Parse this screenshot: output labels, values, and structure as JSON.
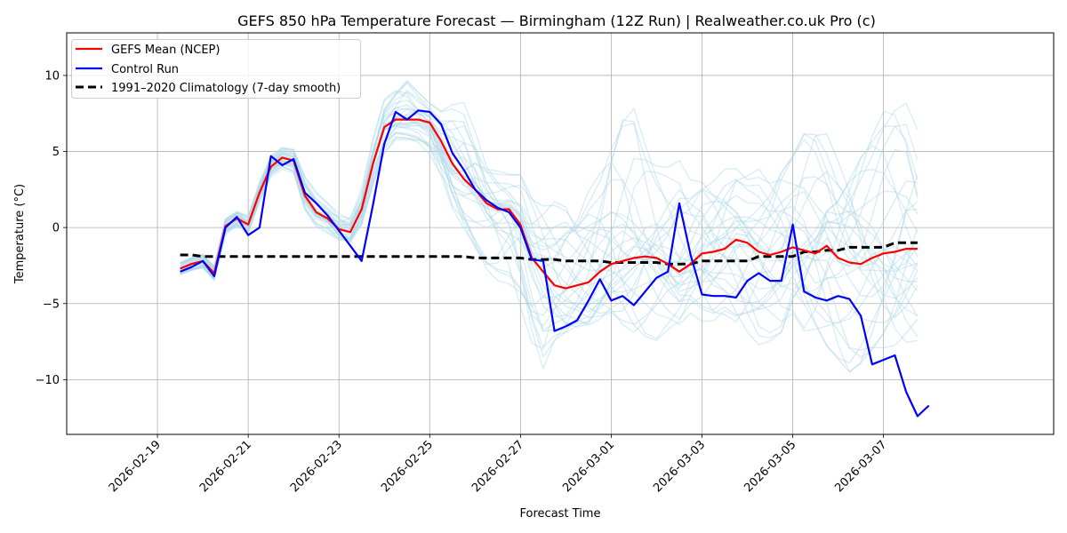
{
  "chart_data": {
    "type": "line",
    "title": "GEFS 850 hPa Temperature Forecast — Birmingham (12Z Run) | Realweather.co.uk Pro (c)",
    "xlabel": "Forecast Time",
    "ylabel": "Temperature (°C)",
    "grid": true,
    "legend_position": "top-left",
    "ylim": [
      -13.6,
      12.8
    ],
    "xlim_hours_from_start": [
      -60,
      462
    ],
    "start_time": "2026-02-19 12Z",
    "step_hours": 6,
    "x_ticks": [
      {
        "label": "2026-02-19",
        "hours": -12
      },
      {
        "label": "2026-02-21",
        "hours": 36
      },
      {
        "label": "2026-02-23",
        "hours": 84
      },
      {
        "label": "2026-02-25",
        "hours": 132
      },
      {
        "label": "2026-02-27",
        "hours": 180
      },
      {
        "label": "2026-03-01",
        "hours": 228
      },
      {
        "label": "2026-03-03",
        "hours": 276
      },
      {
        "label": "2026-03-05",
        "hours": 324
      },
      {
        "label": "2026-03-07",
        "hours": 372
      }
    ],
    "y_ticks": [
      {
        "label": "−10",
        "value": -10
      },
      {
        "label": "−5",
        "value": -5
      },
      {
        "label": "0",
        "value": 0
      },
      {
        "label": "5",
        "value": 5
      },
      {
        "label": "10",
        "value": 10
      }
    ],
    "series": [
      {
        "name": "GEFS Mean (NCEP)",
        "color": "#ff0000",
        "style": "solid",
        "values": [
          -2.7,
          -2.4,
          -2.2,
          -3.0,
          0.1,
          0.6,
          0.2,
          2.3,
          4.0,
          4.6,
          4.4,
          2.1,
          1.0,
          0.6,
          -0.1,
          -0.3,
          1.2,
          4.2,
          6.6,
          7.1,
          7.1,
          7.1,
          6.9,
          5.7,
          4.2,
          3.2,
          2.5,
          1.6,
          1.2,
          1.2,
          0.2,
          -2.0,
          -2.9,
          -3.8,
          -4.0,
          -3.8,
          -3.6,
          -2.9,
          -2.4,
          -2.2,
          -2.0,
          -1.9,
          -2.0,
          -2.4,
          -2.9,
          -2.4,
          -1.7,
          -1.6,
          -1.4,
          -0.8,
          -1.0,
          -1.6,
          -1.8,
          -1.6,
          -1.3,
          -1.5,
          -1.7,
          -1.2,
          -2.0,
          -2.3,
          -2.4,
          -2.0,
          -1.7,
          -1.6,
          -1.4,
          -1.4
        ]
      },
      {
        "name": "Control Run",
        "color": "#0000ff",
        "style": "solid",
        "values": [
          -2.9,
          -2.6,
          -2.2,
          -3.2,
          0.0,
          0.7,
          -0.5,
          0.0,
          4.7,
          4.1,
          4.5,
          2.3,
          1.6,
          0.8,
          -0.2,
          -1.2,
          -2.2,
          1.5,
          5.5,
          7.6,
          7.1,
          7.7,
          7.6,
          6.8,
          4.9,
          3.8,
          2.5,
          1.8,
          1.3,
          1.0,
          0.0,
          -2.1,
          -2.2,
          -6.8,
          -6.5,
          -6.1,
          -4.8,
          -3.4,
          -4.8,
          -4.5,
          -5.1,
          -4.2,
          -3.3,
          -2.9,
          1.6,
          -1.8,
          -4.4,
          -4.5,
          -4.5,
          -4.6,
          -3.5,
          -3.0,
          -3.5,
          -3.5,
          0.2,
          -4.2,
          -4.6,
          -4.8,
          -4.5,
          -4.7,
          -5.8,
          -9.0,
          -8.7,
          -8.4,
          -10.8,
          -12.4,
          -11.7
        ]
      },
      {
        "name": "1991–2020 Climatology (7-day smooth)",
        "color": "#000000",
        "style": "dashed",
        "values": [
          -1.8,
          -1.8,
          -1.9,
          -1.9,
          -1.9,
          -1.9,
          -1.9,
          -1.9,
          -1.9,
          -1.9,
          -1.9,
          -1.9,
          -1.9,
          -1.9,
          -1.9,
          -1.9,
          -1.9,
          -1.9,
          -1.9,
          -1.9,
          -1.9,
          -1.9,
          -1.9,
          -1.9,
          -1.9,
          -1.9,
          -2.0,
          -2.0,
          -2.0,
          -2.0,
          -2.0,
          -2.1,
          -2.1,
          -2.1,
          -2.2,
          -2.2,
          -2.2,
          -2.2,
          -2.3,
          -2.3,
          -2.3,
          -2.3,
          -2.3,
          -2.4,
          -2.4,
          -2.4,
          -2.2,
          -2.2,
          -2.2,
          -2.2,
          -2.2,
          -1.9,
          -1.9,
          -1.9,
          -1.9,
          -1.6,
          -1.6,
          -1.5,
          -1.5,
          -1.3,
          -1.3,
          -1.3,
          -1.3,
          -1.0,
          -1.0,
          -1.0
        ]
      }
    ],
    "ensemble_members": {
      "name": "GEFS members",
      "color": "#add8e6",
      "count": 30,
      "spread_lower": [
        -4.3,
        -3.8,
        -3.6,
        -4.1,
        -1.5,
        -0.6,
        -1.5,
        1.0,
        3.0,
        3.2,
        2.8,
        0.2,
        -1.0,
        -1.8,
        -2.5,
        -2.7,
        -1.5,
        1.5,
        4.0,
        5.5,
        5.5,
        5.0,
        3.5,
        1.5,
        -0.5,
        -1.5,
        -2.5,
        -3.5,
        -4.0,
        -4.5,
        -6.0,
        -8.5,
        -10.5,
        -8.5,
        -8.0,
        -7.5,
        -7.5,
        -7.0,
        -6.5,
        -7.0,
        -7.5,
        -7.5,
        -7.5,
        -7.0,
        -7.0,
        -6.0,
        -6.5,
        -6.5,
        -6.0,
        -7.0,
        -7.5,
        -8.0,
        -8.0,
        -8.5,
        -7.5,
        -9.0,
        -9.0,
        -9.5,
        -9.5,
        -10.0,
        -9.5,
        -9.0,
        -9.0,
        -9.0,
        -8.5,
        -8.0
      ],
      "spread_upper": [
        -1.5,
        -1.2,
        -1.0,
        -1.5,
        1.6,
        1.6,
        1.5,
        4.0,
        5.5,
        5.8,
        5.8,
        4.8,
        3.8,
        3.0,
        2.8,
        2.5,
        4.0,
        7.0,
        9.5,
        10.5,
        11.5,
        9.5,
        8.3,
        8.0,
        9.0,
        9.5,
        7.5,
        5.0,
        4.0,
        3.5,
        3.5,
        2.5,
        2.0,
        2.5,
        2.8,
        2.3,
        3.5,
        4.5,
        6.5,
        8.0,
        8.3,
        6.0,
        4.5,
        4.0,
        4.5,
        3.5,
        4.0,
        4.0,
        4.5,
        4.3,
        3.5,
        4.0,
        4.0,
        5.0,
        5.5,
        7.0,
        7.3,
        6.5,
        5.5,
        6.0,
        6.5,
        7.0,
        8.0,
        8.5,
        8.5,
        6.5
      ]
    }
  }
}
